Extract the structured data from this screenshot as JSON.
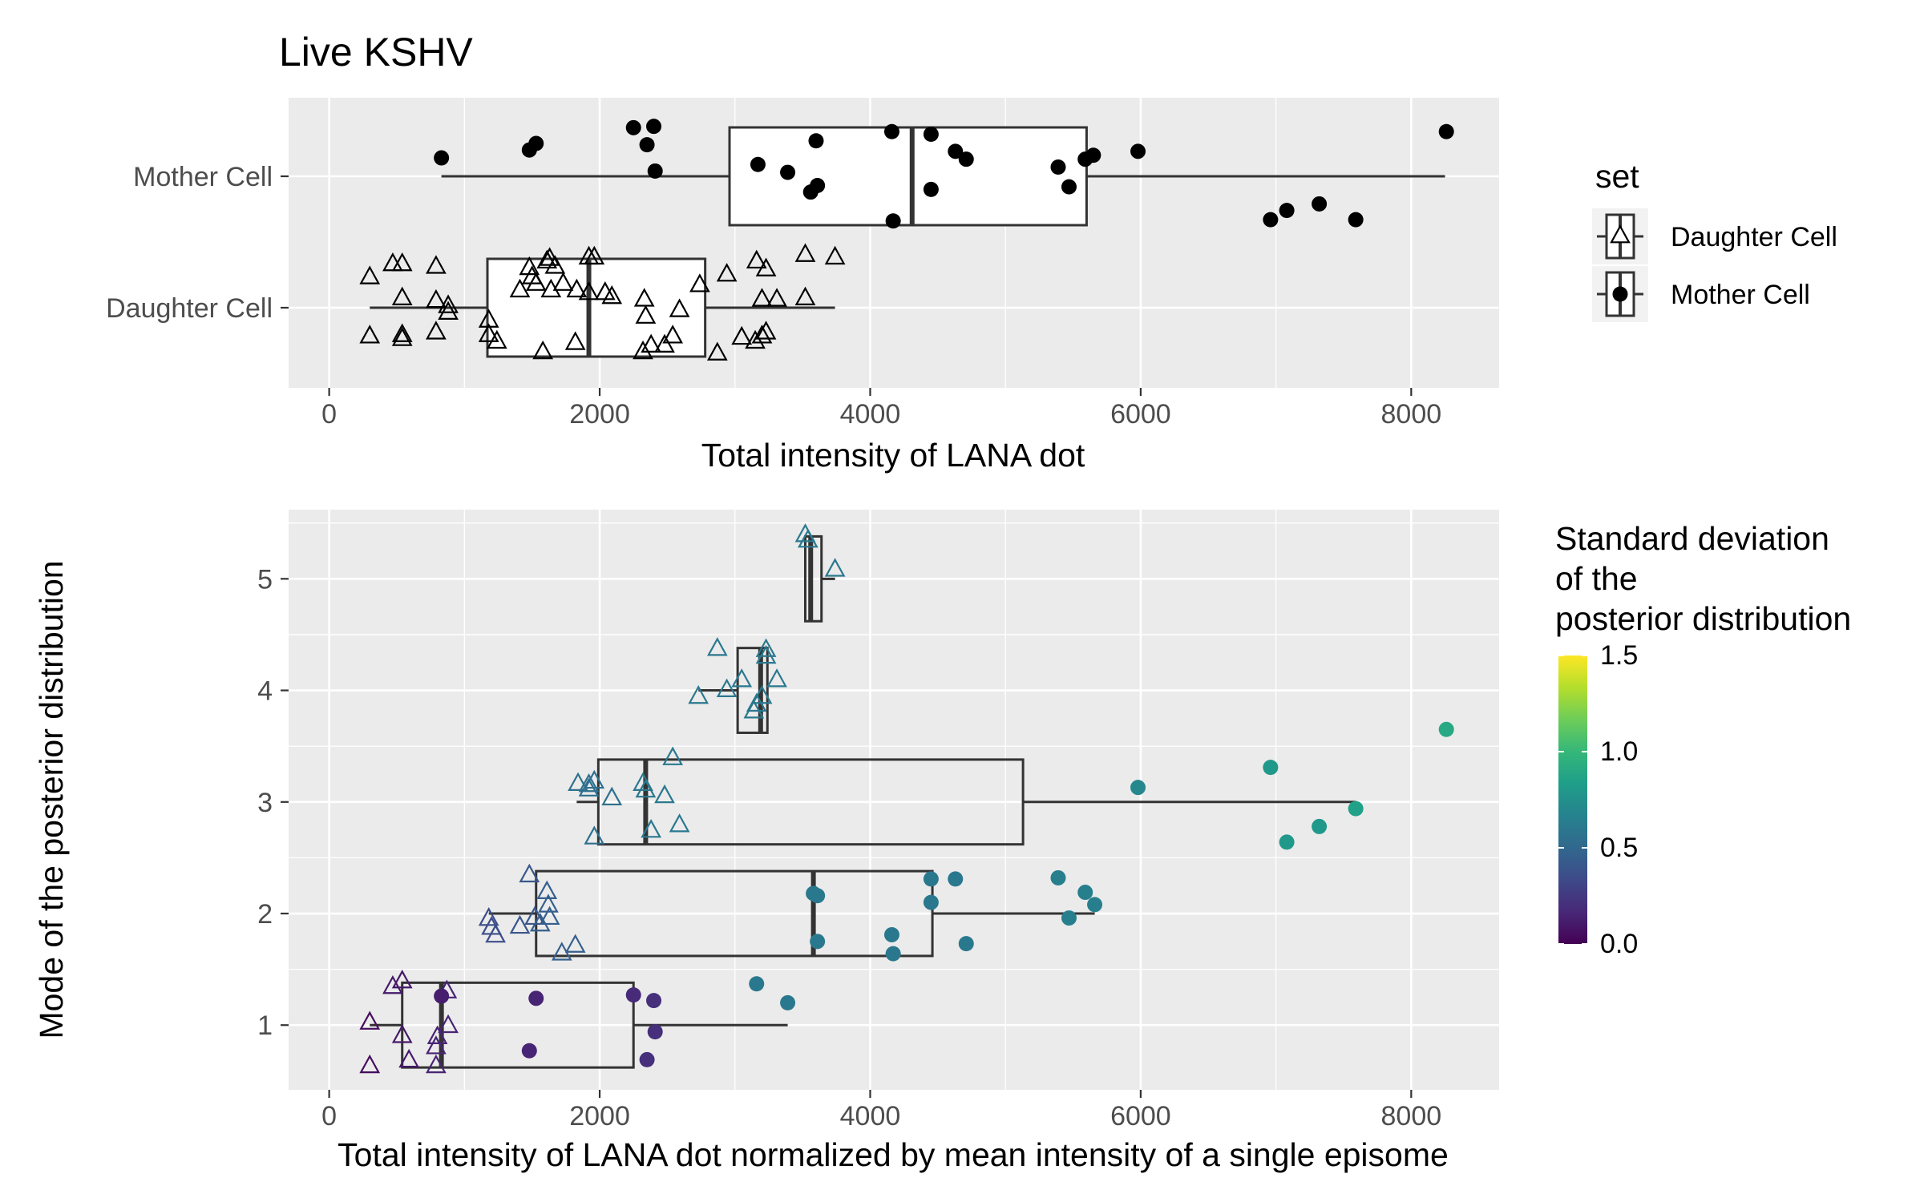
{
  "colors": {
    "panel_bg": "#EBEBEB",
    "grid_major": "#FFFFFF",
    "box_line": "#333333",
    "point_black": "#000000",
    "viridis": [
      "#440154",
      "#482878",
      "#3E4A89",
      "#31688E",
      "#26828E",
      "#1F9E89",
      "#35B779",
      "#6DCD59",
      "#B4DE2C",
      "#FDE725"
    ]
  },
  "chart_data": [
    {
      "type": "boxplot",
      "title": "Live KSHV",
      "xlabel": "Total intensity of LANA dot",
      "ylabel": "",
      "xlim": [
        -300,
        8650
      ],
      "xticks": [
        0,
        2000,
        4000,
        6000,
        8000
      ],
      "categories": [
        "Daughter Cell",
        "Mother Cell"
      ],
      "grid": true,
      "legend": {
        "title": "set",
        "position": "right",
        "entries": [
          {
            "label": "Daughter Cell",
            "shape": "triangle-open"
          },
          {
            "label": "Mother Cell",
            "shape": "circle-filled"
          }
        ]
      },
      "boxes": [
        {
          "category": "Mother Cell",
          "whisker_low": 830,
          "q1": 2960,
          "median": 4310,
          "q3": 5600,
          "whisker_high": 8250
        },
        {
          "category": "Daughter Cell",
          "whisker_low": 300,
          "q1": 1170,
          "median": 1920,
          "q3": 2780,
          "whisker_high": 3740
        }
      ],
      "series": [
        {
          "name": "Mother Cell",
          "shape": "circle-filled",
          "category": "Mother Cell",
          "points": [
            {
              "x": 830,
              "jitter": 0.14
            },
            {
              "x": 1480,
              "jitter": 0.2
            },
            {
              "x": 1530,
              "jitter": 0.25
            },
            {
              "x": 2250,
              "jitter": 0.37
            },
            {
              "x": 2400,
              "jitter": 0.38
            },
            {
              "x": 2350,
              "jitter": 0.24
            },
            {
              "x": 2410,
              "jitter": 0.04
            },
            {
              "x": 3170,
              "jitter": 0.09
            },
            {
              "x": 3390,
              "jitter": 0.03
            },
            {
              "x": 3600,
              "jitter": 0.27
            },
            {
              "x": 3560,
              "jitter": -0.12
            },
            {
              "x": 3610,
              "jitter": -0.07
            },
            {
              "x": 4160,
              "jitter": 0.34
            },
            {
              "x": 4170,
              "jitter": -0.34
            },
            {
              "x": 4450,
              "jitter": 0.32
            },
            {
              "x": 4450,
              "jitter": -0.1
            },
            {
              "x": 4630,
              "jitter": 0.19
            },
            {
              "x": 4710,
              "jitter": 0.13
            },
            {
              "x": 5390,
              "jitter": 0.07
            },
            {
              "x": 5470,
              "jitter": -0.08
            },
            {
              "x": 5590,
              "jitter": 0.13
            },
            {
              "x": 5650,
              "jitter": 0.16
            },
            {
              "x": 5980,
              "jitter": 0.19
            },
            {
              "x": 6960,
              "jitter": -0.33
            },
            {
              "x": 7080,
              "jitter": -0.26
            },
            {
              "x": 7320,
              "jitter": -0.21
            },
            {
              "x": 7590,
              "jitter": -0.33
            },
            {
              "x": 8260,
              "jitter": 0.34
            }
          ]
        },
        {
          "name": "Daughter Cell",
          "shape": "triangle-open",
          "category": "Daughter Cell",
          "points": [
            {
              "x": 300,
              "jitter": 0.23
            },
            {
              "x": 300,
              "jitter": -0.22
            },
            {
              "x": 470,
              "jitter": 0.33
            },
            {
              "x": 540,
              "jitter": 0.33
            },
            {
              "x": 540,
              "jitter": -0.24
            },
            {
              "x": 540,
              "jitter": -0.21
            },
            {
              "x": 540,
              "jitter": 0.07
            },
            {
              "x": 790,
              "jitter": 0.31
            },
            {
              "x": 790,
              "jitter": 0.05
            },
            {
              "x": 790,
              "jitter": -0.19
            },
            {
              "x": 880,
              "jitter": -0.04
            },
            {
              "x": 880,
              "jitter": 0.01
            },
            {
              "x": 1180,
              "jitter": -0.1
            },
            {
              "x": 1180,
              "jitter": -0.21
            },
            {
              "x": 1240,
              "jitter": -0.26
            },
            {
              "x": 1410,
              "jitter": 0.13
            },
            {
              "x": 1480,
              "jitter": 0.3
            },
            {
              "x": 1500,
              "jitter": 0.23
            },
            {
              "x": 1530,
              "jitter": 0.18
            },
            {
              "x": 1580,
              "jitter": -0.34
            },
            {
              "x": 1610,
              "jitter": 0.35
            },
            {
              "x": 1630,
              "jitter": 0.37
            },
            {
              "x": 1670,
              "jitter": 0.31
            },
            {
              "x": 1640,
              "jitter": 0.13
            },
            {
              "x": 1730,
              "jitter": 0.18
            },
            {
              "x": 1830,
              "jitter": 0.13
            },
            {
              "x": 1820,
              "jitter": -0.27
            },
            {
              "x": 1920,
              "jitter": 0.38
            },
            {
              "x": 1960,
              "jitter": 0.38
            },
            {
              "x": 1920,
              "jitter": 0.11
            },
            {
              "x": 2040,
              "jitter": 0.11
            },
            {
              "x": 2090,
              "jitter": 0.08
            },
            {
              "x": 2330,
              "jitter": 0.06
            },
            {
              "x": 2320,
              "jitter": -0.34
            },
            {
              "x": 2340,
              "jitter": -0.07
            },
            {
              "x": 2380,
              "jitter": -0.29
            },
            {
              "x": 2480,
              "jitter": -0.29
            },
            {
              "x": 2540,
              "jitter": -0.22
            },
            {
              "x": 2590,
              "jitter": -0.02
            },
            {
              "x": 2740,
              "jitter": 0.17
            },
            {
              "x": 2870,
              "jitter": -0.35
            },
            {
              "x": 2940,
              "jitter": 0.25
            },
            {
              "x": 3050,
              "jitter": -0.23
            },
            {
              "x": 3150,
              "jitter": -0.26
            },
            {
              "x": 3160,
              "jitter": 0.35
            },
            {
              "x": 3230,
              "jitter": 0.29
            },
            {
              "x": 3200,
              "jitter": -0.22
            },
            {
              "x": 3230,
              "jitter": -0.19
            },
            {
              "x": 3310,
              "jitter": 0.06
            },
            {
              "x": 3200,
              "jitter": 0.06
            },
            {
              "x": 3520,
              "jitter": 0.07
            },
            {
              "x": 3520,
              "jitter": 0.4
            },
            {
              "x": 3740,
              "jitter": 0.38
            }
          ]
        }
      ]
    },
    {
      "type": "boxplot",
      "title": "",
      "xlabel": "Total intensity of LANA dot normalized by mean intensity of a single episome",
      "ylabel": "Mode of the posterior distribution",
      "xlim": [
        -300,
        8650
      ],
      "ylim": [
        0.42,
        5.62
      ],
      "xticks": [
        0,
        2000,
        4000,
        6000,
        8000
      ],
      "yticks": [
        1,
        2,
        3,
        4,
        5
      ],
      "grid": true,
      "colorbar": {
        "title": [
          "Standard deviation",
          "of the",
          "posterior distribution"
        ],
        "position": "right",
        "min": 0,
        "max": 1.5,
        "ticks": [
          "0.0",
          "0.5",
          "1.0",
          "1.5"
        ]
      },
      "boxes": [
        {
          "y": 1,
          "whisker_low": 300,
          "q1": 540,
          "median": 830,
          "q3": 2250,
          "whisker_high": 3390
        },
        {
          "y": 2,
          "whisker_low": 1180,
          "q1": 1530,
          "median": 3580,
          "q3": 4460,
          "whisker_high": 5660
        },
        {
          "y": 3,
          "whisker_low": 1830,
          "q1": 1990,
          "median": 2340,
          "q3": 5130,
          "whisker_high": 7590
        },
        {
          "y": 4,
          "whisker_low": 2730,
          "q1": 3020,
          "median": 3190,
          "q3": 3240,
          "whisker_high": 3240
        },
        {
          "y": 5,
          "whisker_low": 3520,
          "q1": 3520,
          "median": 3560,
          "q3": 3640,
          "whisker_high": 3740
        }
      ],
      "series": [
        {
          "name": "Daughter Cell",
          "shape": "triangle-open",
          "points": [
            {
              "x": 300,
              "y": 1.02,
              "sd": 0.05
            },
            {
              "x": 300,
              "y": 0.63,
              "sd": 0.05
            },
            {
              "x": 470,
              "y": 1.34,
              "sd": 0.1
            },
            {
              "x": 540,
              "y": 1.39,
              "sd": 0.1
            },
            {
              "x": 540,
              "y": 0.9,
              "sd": 0.1
            },
            {
              "x": 590,
              "y": 0.68,
              "sd": 0.1
            },
            {
              "x": 790,
              "y": 0.8,
              "sd": 0.15
            },
            {
              "x": 790,
              "y": 0.63,
              "sd": 0.15
            },
            {
              "x": 800,
              "y": 0.89,
              "sd": 0.15
            },
            {
              "x": 870,
              "y": 1.3,
              "sd": 0.15
            },
            {
              "x": 880,
              "y": 0.99,
              "sd": 0.15
            },
            {
              "x": 1180,
              "y": 1.95,
              "sd": 0.35
            },
            {
              "x": 1200,
              "y": 1.87,
              "sd": 0.35
            },
            {
              "x": 1230,
              "y": 1.8,
              "sd": 0.35
            },
            {
              "x": 1410,
              "y": 1.88,
              "sd": 0.4
            },
            {
              "x": 1480,
              "y": 2.34,
              "sd": 0.4
            },
            {
              "x": 1520,
              "y": 1.96,
              "sd": 0.4
            },
            {
              "x": 1560,
              "y": 1.9,
              "sd": 0.45
            },
            {
              "x": 1610,
              "y": 2.19,
              "sd": 0.45
            },
            {
              "x": 1620,
              "y": 2.07,
              "sd": 0.45
            },
            {
              "x": 1630,
              "y": 1.96,
              "sd": 0.45
            },
            {
              "x": 1720,
              "y": 1.64,
              "sd": 0.45
            },
            {
              "x": 1820,
              "y": 1.71,
              "sd": 0.45
            },
            {
              "x": 1840,
              "y": 3.16,
              "sd": 0.55
            },
            {
              "x": 1920,
              "y": 3.15,
              "sd": 0.55
            },
            {
              "x": 1920,
              "y": 3.11,
              "sd": 0.55
            },
            {
              "x": 1960,
              "y": 3.18,
              "sd": 0.55
            },
            {
              "x": 1960,
              "y": 2.68,
              "sd": 0.55
            },
            {
              "x": 2090,
              "y": 3.03,
              "sd": 0.55
            },
            {
              "x": 2320,
              "y": 3.16,
              "sd": 0.6
            },
            {
              "x": 2340,
              "y": 3.1,
              "sd": 0.6
            },
            {
              "x": 2380,
              "y": 2.74,
              "sd": 0.6
            },
            {
              "x": 2480,
              "y": 3.05,
              "sd": 0.6
            },
            {
              "x": 2540,
              "y": 3.39,
              "sd": 0.6
            },
            {
              "x": 2590,
              "y": 2.79,
              "sd": 0.6
            },
            {
              "x": 2730,
              "y": 3.94,
              "sd": 0.6
            },
            {
              "x": 2870,
              "y": 4.37,
              "sd": 0.6
            },
            {
              "x": 2940,
              "y": 4.0,
              "sd": 0.6
            },
            {
              "x": 3050,
              "y": 4.09,
              "sd": 0.6
            },
            {
              "x": 3140,
              "y": 3.81,
              "sd": 0.6
            },
            {
              "x": 3160,
              "y": 3.87,
              "sd": 0.6
            },
            {
              "x": 3200,
              "y": 3.94,
              "sd": 0.6
            },
            {
              "x": 3230,
              "y": 4.36,
              "sd": 0.6
            },
            {
              "x": 3230,
              "y": 4.3,
              "sd": 0.6
            },
            {
              "x": 3310,
              "y": 4.09,
              "sd": 0.6
            },
            {
              "x": 3520,
              "y": 5.39,
              "sd": 0.6
            },
            {
              "x": 3540,
              "y": 5.34,
              "sd": 0.6
            },
            {
              "x": 3740,
              "y": 5.08,
              "sd": 0.6
            }
          ]
        },
        {
          "name": "Mother Cell",
          "shape": "circle-filled",
          "points": [
            {
              "x": 830,
              "y": 1.26,
              "sd": 0.12
            },
            {
              "x": 1480,
              "y": 0.77,
              "sd": 0.15
            },
            {
              "x": 1530,
              "y": 1.24,
              "sd": 0.15
            },
            {
              "x": 2250,
              "y": 1.27,
              "sd": 0.18
            },
            {
              "x": 2350,
              "y": 0.69,
              "sd": 0.2
            },
            {
              "x": 2400,
              "y": 1.22,
              "sd": 0.2
            },
            {
              "x": 2410,
              "y": 0.94,
              "sd": 0.2
            },
            {
              "x": 3160,
              "y": 1.37,
              "sd": 0.6
            },
            {
              "x": 3390,
              "y": 1.2,
              "sd": 0.6
            },
            {
              "x": 3580,
              "y": 2.18,
              "sd": 0.6
            },
            {
              "x": 3610,
              "y": 2.16,
              "sd": 0.6
            },
            {
              "x": 3610,
              "y": 1.75,
              "sd": 0.6
            },
            {
              "x": 4160,
              "y": 1.81,
              "sd": 0.6
            },
            {
              "x": 4170,
              "y": 1.64,
              "sd": 0.6
            },
            {
              "x": 4450,
              "y": 2.31,
              "sd": 0.6
            },
            {
              "x": 4450,
              "y": 2.1,
              "sd": 0.6
            },
            {
              "x": 4630,
              "y": 2.31,
              "sd": 0.6
            },
            {
              "x": 4710,
              "y": 1.73,
              "sd": 0.6
            },
            {
              "x": 5390,
              "y": 2.32,
              "sd": 0.65
            },
            {
              "x": 5470,
              "y": 1.96,
              "sd": 0.65
            },
            {
              "x": 5590,
              "y": 2.19,
              "sd": 0.65
            },
            {
              "x": 5660,
              "y": 2.08,
              "sd": 0.65
            },
            {
              "x": 5980,
              "y": 3.13,
              "sd": 0.7
            },
            {
              "x": 6960,
              "y": 3.31,
              "sd": 0.8
            },
            {
              "x": 7080,
              "y": 2.64,
              "sd": 0.8
            },
            {
              "x": 7320,
              "y": 2.78,
              "sd": 0.8
            },
            {
              "x": 7590,
              "y": 2.94,
              "sd": 0.85
            },
            {
              "x": 8260,
              "y": 3.65,
              "sd": 0.9
            }
          ]
        }
      ]
    }
  ]
}
